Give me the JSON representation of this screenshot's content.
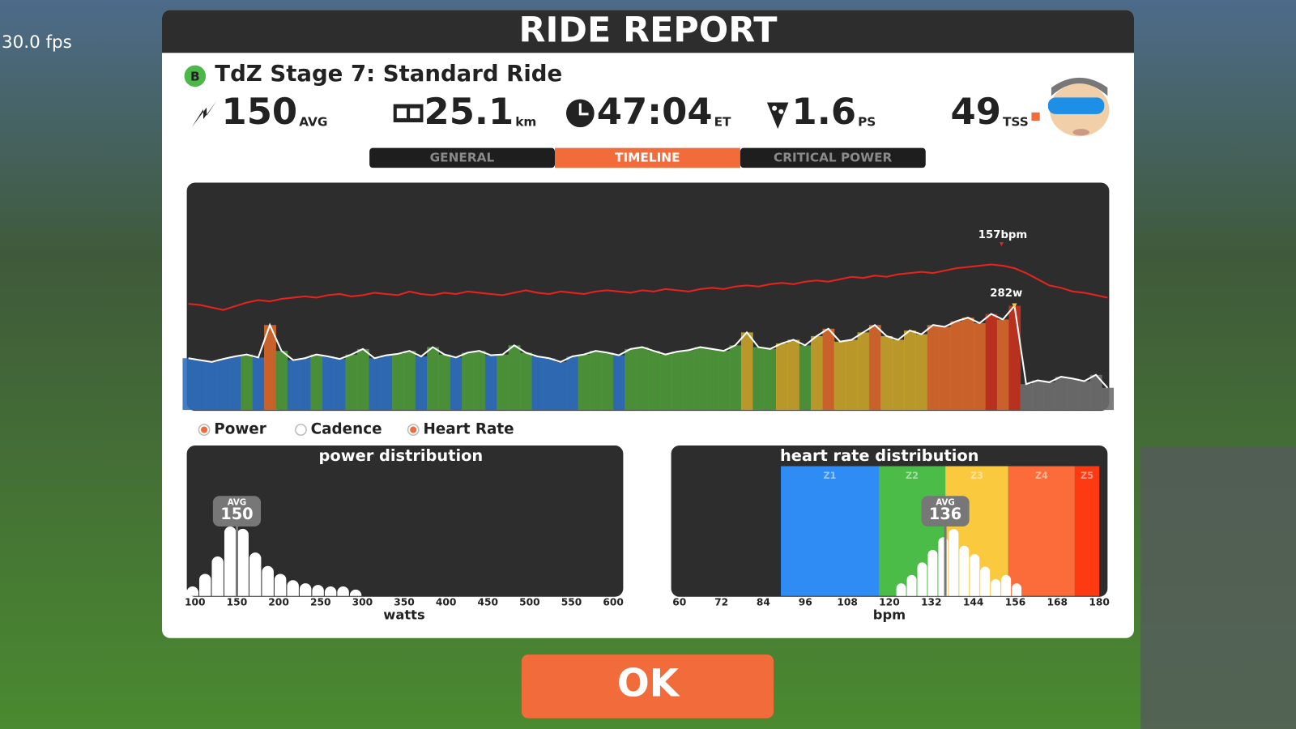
{
  "fps": "30.0 fps",
  "title": "RIDE REPORT",
  "badge": "B",
  "ride_name": "TdZ Stage 7: Standard Ride",
  "stats": [
    {
      "value": "150",
      "unit": "AVG"
    },
    {
      "value": "25.1",
      "unit": "km"
    },
    {
      "value": "47:04",
      "unit": "ET"
    },
    {
      "value": "1.6",
      "unit": "PS"
    },
    {
      "value": "49",
      "unit": "TSS"
    }
  ],
  "tabs": [
    "GENERAL",
    "TIMELINE",
    "CRITICAL POWER"
  ],
  "active_tab": 1,
  "timeline": {
    "type": "line",
    "max_hr_label": "157bpm",
    "max_power_label": "282w",
    "power": [
      140,
      135,
      130,
      138,
      145,
      150,
      142,
      230,
      160,
      135,
      140,
      150,
      145,
      138,
      150,
      165,
      140,
      148,
      152,
      160,
      145,
      170,
      150,
      142,
      155,
      160,
      148,
      150,
      175,
      155,
      145,
      140,
      130,
      145,
      150,
      160,
      155,
      148,
      165,
      170,
      160,
      150,
      158,
      162,
      170,
      165,
      160,
      175,
      210,
      170,
      165,
      180,
      190,
      175,
      200,
      220,
      185,
      190,
      210,
      230,
      200,
      190,
      215,
      205,
      230,
      225,
      240,
      250,
      235,
      260,
      245,
      282,
      70,
      80,
      75,
      90,
      85,
      78,
      95,
      60
    ],
    "heart_rate": [
      125,
      124,
      122,
      120,
      123,
      126,
      128,
      127,
      129,
      130,
      131,
      130,
      132,
      133,
      131,
      132,
      134,
      133,
      132,
      135,
      133,
      132,
      134,
      133,
      135,
      134,
      133,
      132,
      134,
      136,
      134,
      133,
      135,
      134,
      133,
      135,
      136,
      135,
      134,
      136,
      135,
      137,
      136,
      135,
      137,
      138,
      137,
      139,
      140,
      139,
      141,
      142,
      141,
      143,
      144,
      143,
      145,
      147,
      146,
      148,
      147,
      149,
      150,
      151,
      150,
      152,
      154,
      155,
      156,
      157,
      156,
      154,
      150,
      145,
      140,
      138,
      135,
      134,
      132,
      130
    ],
    "power_color": "#ffffff",
    "hr_color": "#e8231e"
  },
  "legend": [
    {
      "name": "Power",
      "on": true
    },
    {
      "name": "Cadence",
      "on": false
    },
    {
      "name": "Heart Rate",
      "on": true
    }
  ],
  "power_distribution": {
    "type": "histogram",
    "title": "power distribution",
    "xlabel": "watts",
    "xlim": [
      100,
      600
    ],
    "xticks": [
      100,
      150,
      200,
      250,
      300,
      350,
      400,
      450,
      500,
      550,
      600
    ],
    "bins": [
      90,
      105,
      120,
      135,
      150,
      165,
      180,
      195,
      210,
      225,
      240,
      255,
      270,
      285,
      300
    ],
    "counts": [
      12,
      28,
      50,
      88,
      85,
      55,
      38,
      28,
      20,
      16,
      14,
      12,
      12,
      8
    ],
    "avg_label": "AVG",
    "avg": 150
  },
  "hr_distribution": {
    "type": "histogram",
    "title": "heart rate distribution",
    "xlabel": "bpm",
    "xlim": [
      60,
      180
    ],
    "xticks": [
      60,
      72,
      84,
      96,
      108,
      120,
      132,
      144,
      156,
      168,
      180
    ],
    "zones": [
      {
        "name": "Z1",
        "from": 89,
        "to": 117,
        "color": "#2f8cf5"
      },
      {
        "name": "Z2",
        "from": 117,
        "to": 136,
        "color": "#4cbc48"
      },
      {
        "name": "Z3",
        "from": 136,
        "to": 154,
        "color": "#fbc93d"
      },
      {
        "name": "Z4",
        "from": 154,
        "to": 173,
        "color": "#fc6b3a"
      },
      {
        "name": "Z5",
        "from": 173,
        "to": 180,
        "color": "#fe3a12"
      }
    ],
    "bins": [
      122,
      125,
      128,
      131,
      134,
      137,
      140,
      143,
      146,
      149,
      152,
      155,
      158
    ],
    "counts": [
      15,
      25,
      40,
      55,
      70,
      80,
      60,
      50,
      35,
      20,
      25,
      15
    ],
    "avg_label": "AVG",
    "avg": 136
  },
  "ok": "OK"
}
